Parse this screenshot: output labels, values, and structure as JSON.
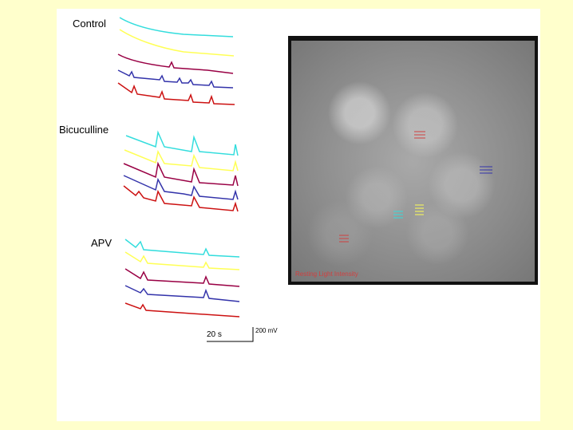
{
  "labels": {
    "control": "Control",
    "bicuculline": "Bicuculline",
    "apv": "APV"
  },
  "image_caption": "Resting Light Intensity",
  "scale_bar": {
    "time": "20 s",
    "voltage": "200 mV"
  },
  "colors": {
    "background": "#ffffcc",
    "cyan": "#33dddd",
    "yellow": "#ffff55",
    "purple": "#990044",
    "blue": "#3333aa",
    "red": "#cc1111"
  }
}
